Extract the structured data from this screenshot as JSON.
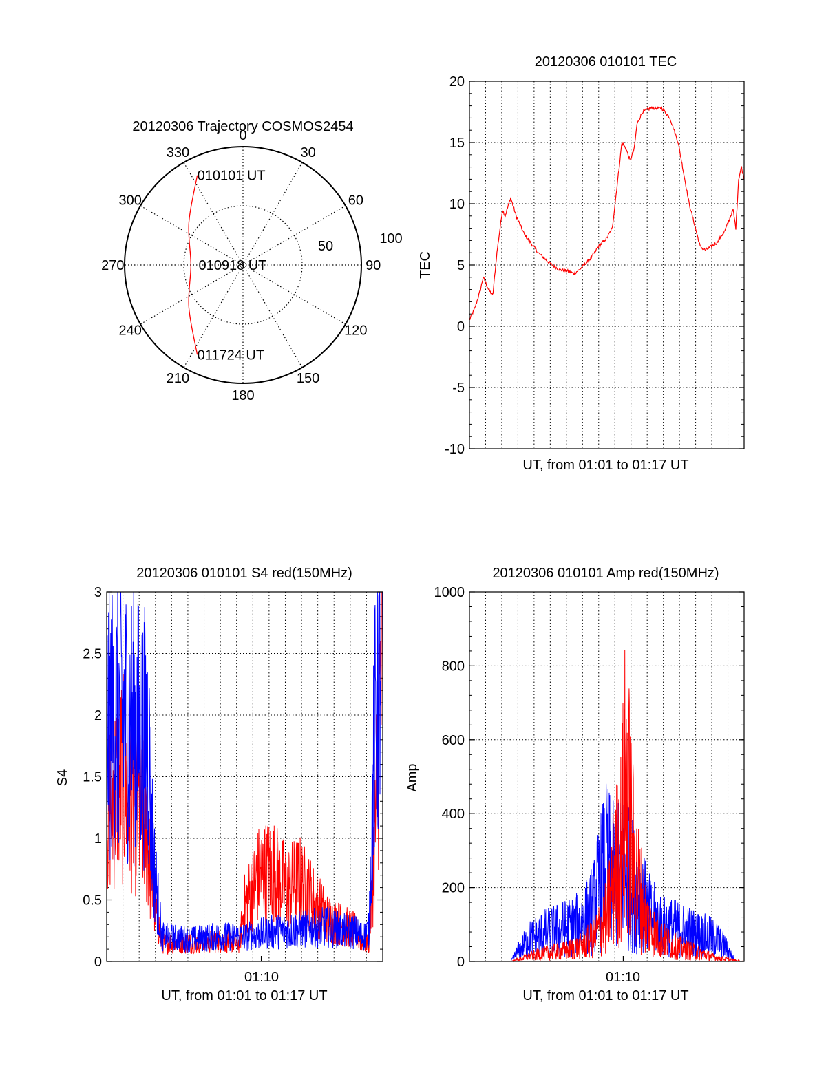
{
  "colors": {
    "red": "#ff0000",
    "blue": "#0000ff",
    "grid": "#000000",
    "axis": "#000000"
  },
  "chart_data": [
    {
      "id": "polar",
      "type": "polar-trajectory",
      "title": "20120306 Trajectory COSMOS2454",
      "angle_labels": [
        "0",
        "30",
        "60",
        "90",
        "120",
        "150",
        "180",
        "210",
        "240",
        "270",
        "300",
        "330"
      ],
      "radial_labels": [
        "50",
        "100"
      ],
      "rmax": 100,
      "annotations": [
        {
          "text": "010101 UT",
          "az": 333,
          "r": 85
        },
        {
          "text": "010918 UT",
          "az": 270,
          "r": 0
        },
        {
          "text": "011724 UT",
          "az": 207,
          "r": 85
        }
      ],
      "track": [
        [
          333,
          85
        ],
        [
          308,
          58
        ],
        [
          270,
          44
        ],
        [
          232,
          58
        ],
        [
          207,
          85
        ]
      ]
    },
    {
      "id": "tec",
      "type": "line",
      "title": "20120306 010101 TEC",
      "xlabel": "UT, from 01:01 to 01:17 UT",
      "ylabel": "TEC",
      "xlim": [
        0,
        1
      ],
      "ylim": [
        -10,
        20
      ],
      "yticks": [
        -10,
        -5,
        0,
        5,
        10,
        15,
        20
      ],
      "yticklabels": [
        "-10",
        "-5",
        "0",
        "5",
        "10",
        "15",
        "20"
      ],
      "series": [
        {
          "name": "TEC",
          "color": "red",
          "x": [
            0,
            0.02,
            0.04,
            0.05,
            0.06,
            0.07,
            0.085,
            0.1,
            0.12,
            0.13,
            0.15,
            0.17,
            0.2,
            0.25,
            0.3,
            0.33,
            0.36,
            0.38,
            0.4,
            0.44,
            0.47,
            0.5,
            0.52,
            0.54,
            0.555,
            0.57,
            0.585,
            0.6,
            0.61,
            0.63,
            0.66,
            0.7,
            0.73,
            0.76,
            0.8,
            0.84,
            0.86,
            0.9,
            0.93,
            0.96,
            0.97,
            0.98,
            0.99,
            1.0
          ],
          "y": [
            0.5,
            1.5,
            3.0,
            4.0,
            3.5,
            3.0,
            2.5,
            6.0,
            9.5,
            9.0,
            10.5,
            9.0,
            7.5,
            6.0,
            5.0,
            4.6,
            4.5,
            4.3,
            4.6,
            5.5,
            6.5,
            7.2,
            8.0,
            12.0,
            15.0,
            14.5,
            13.5,
            14.5,
            16.5,
            17.5,
            17.8,
            17.8,
            17.0,
            15.0,
            10.0,
            6.5,
            6.2,
            6.8,
            7.8,
            9.5,
            8.0,
            12.0,
            13.0,
            12.0
          ]
        }
      ]
    },
    {
      "id": "s4",
      "type": "line",
      "title": "20120306 010101 S4 red(150MHz)",
      "xlabel": "UT, from 01:01 to 01:17 UT",
      "ylabel": "S4",
      "xtick_label": "01:10",
      "xlim": [
        0,
        1
      ],
      "ylim": [
        0,
        3
      ],
      "yticks": [
        0,
        0.5,
        1,
        1.5,
        2,
        2.5,
        3
      ],
      "yticklabels": [
        "0",
        "0.5",
        "1",
        "1.5",
        "2",
        "2.5",
        "3"
      ],
      "series": [
        {
          "name": "red",
          "color": "red",
          "x": [
            0,
            0.05,
            0.1,
            0.14,
            0.17,
            0.2,
            0.3,
            0.4,
            0.48,
            0.5,
            0.55,
            0.6,
            0.65,
            0.7,
            0.75,
            0.8,
            0.85,
            0.9,
            0.93,
            0.95,
            0.97,
            1.0
          ],
          "y": [
            1.2,
            1.5,
            1.3,
            1.1,
            0.5,
            0.15,
            0.15,
            0.17,
            0.15,
            0.45,
            0.7,
            0.75,
            0.6,
            0.65,
            0.5,
            0.35,
            0.3,
            0.25,
            0.15,
            0.15,
            0.9,
            2.7
          ]
        },
        {
          "name": "blue",
          "color": "blue",
          "x": [
            0,
            0.05,
            0.1,
            0.15,
            0.17,
            0.2,
            0.3,
            0.4,
            0.5,
            0.6,
            0.7,
            0.8,
            0.85,
            0.9,
            0.93,
            0.95,
            0.97,
            1.0
          ],
          "y": [
            1.9,
            2.0,
            1.9,
            1.8,
            0.8,
            0.2,
            0.18,
            0.2,
            0.2,
            0.24,
            0.26,
            0.28,
            0.25,
            0.24,
            0.2,
            0.25,
            1.8,
            2.8
          ]
        }
      ]
    },
    {
      "id": "amp",
      "type": "line",
      "title": "20120306 010101 Amp red(150MHz)",
      "xlabel": "UT, from 01:01 to 01:17 UT",
      "ylabel": "Amp",
      "xtick_label": "01:10",
      "xlim": [
        0,
        1
      ],
      "ylim": [
        0,
        1000
      ],
      "yticks": [
        0,
        200,
        400,
        600,
        800,
        1000
      ],
      "yticklabels": [
        "0",
        "200",
        "400",
        "600",
        "800",
        "1000"
      ],
      "series": [
        {
          "name": "red",
          "color": "red",
          "x": [
            0,
            0.15,
            0.2,
            0.25,
            0.3,
            0.35,
            0.4,
            0.45,
            0.5,
            0.53,
            0.55,
            0.57,
            0.6,
            0.65,
            0.7,
            0.75,
            0.8,
            0.85,
            0.9,
            0.95,
            1.0
          ],
          "y": [
            0,
            0,
            10,
            20,
            25,
            30,
            40,
            60,
            120,
            250,
            300,
            500,
            250,
            100,
            60,
            40,
            30,
            20,
            10,
            5,
            0
          ]
        },
        {
          "name": "blue",
          "color": "blue",
          "x": [
            0,
            0.15,
            0.18,
            0.22,
            0.27,
            0.3,
            0.35,
            0.4,
            0.45,
            0.48,
            0.5,
            0.53,
            0.56,
            0.6,
            0.63,
            0.66,
            0.7,
            0.75,
            0.8,
            0.85,
            0.9,
            0.93,
            0.97,
            1.0
          ],
          "y": [
            0,
            0,
            30,
            60,
            75,
            80,
            90,
            100,
            140,
            220,
            260,
            220,
            250,
            200,
            160,
            120,
            100,
            90,
            80,
            70,
            60,
            40,
            0,
            0
          ]
        }
      ]
    }
  ]
}
